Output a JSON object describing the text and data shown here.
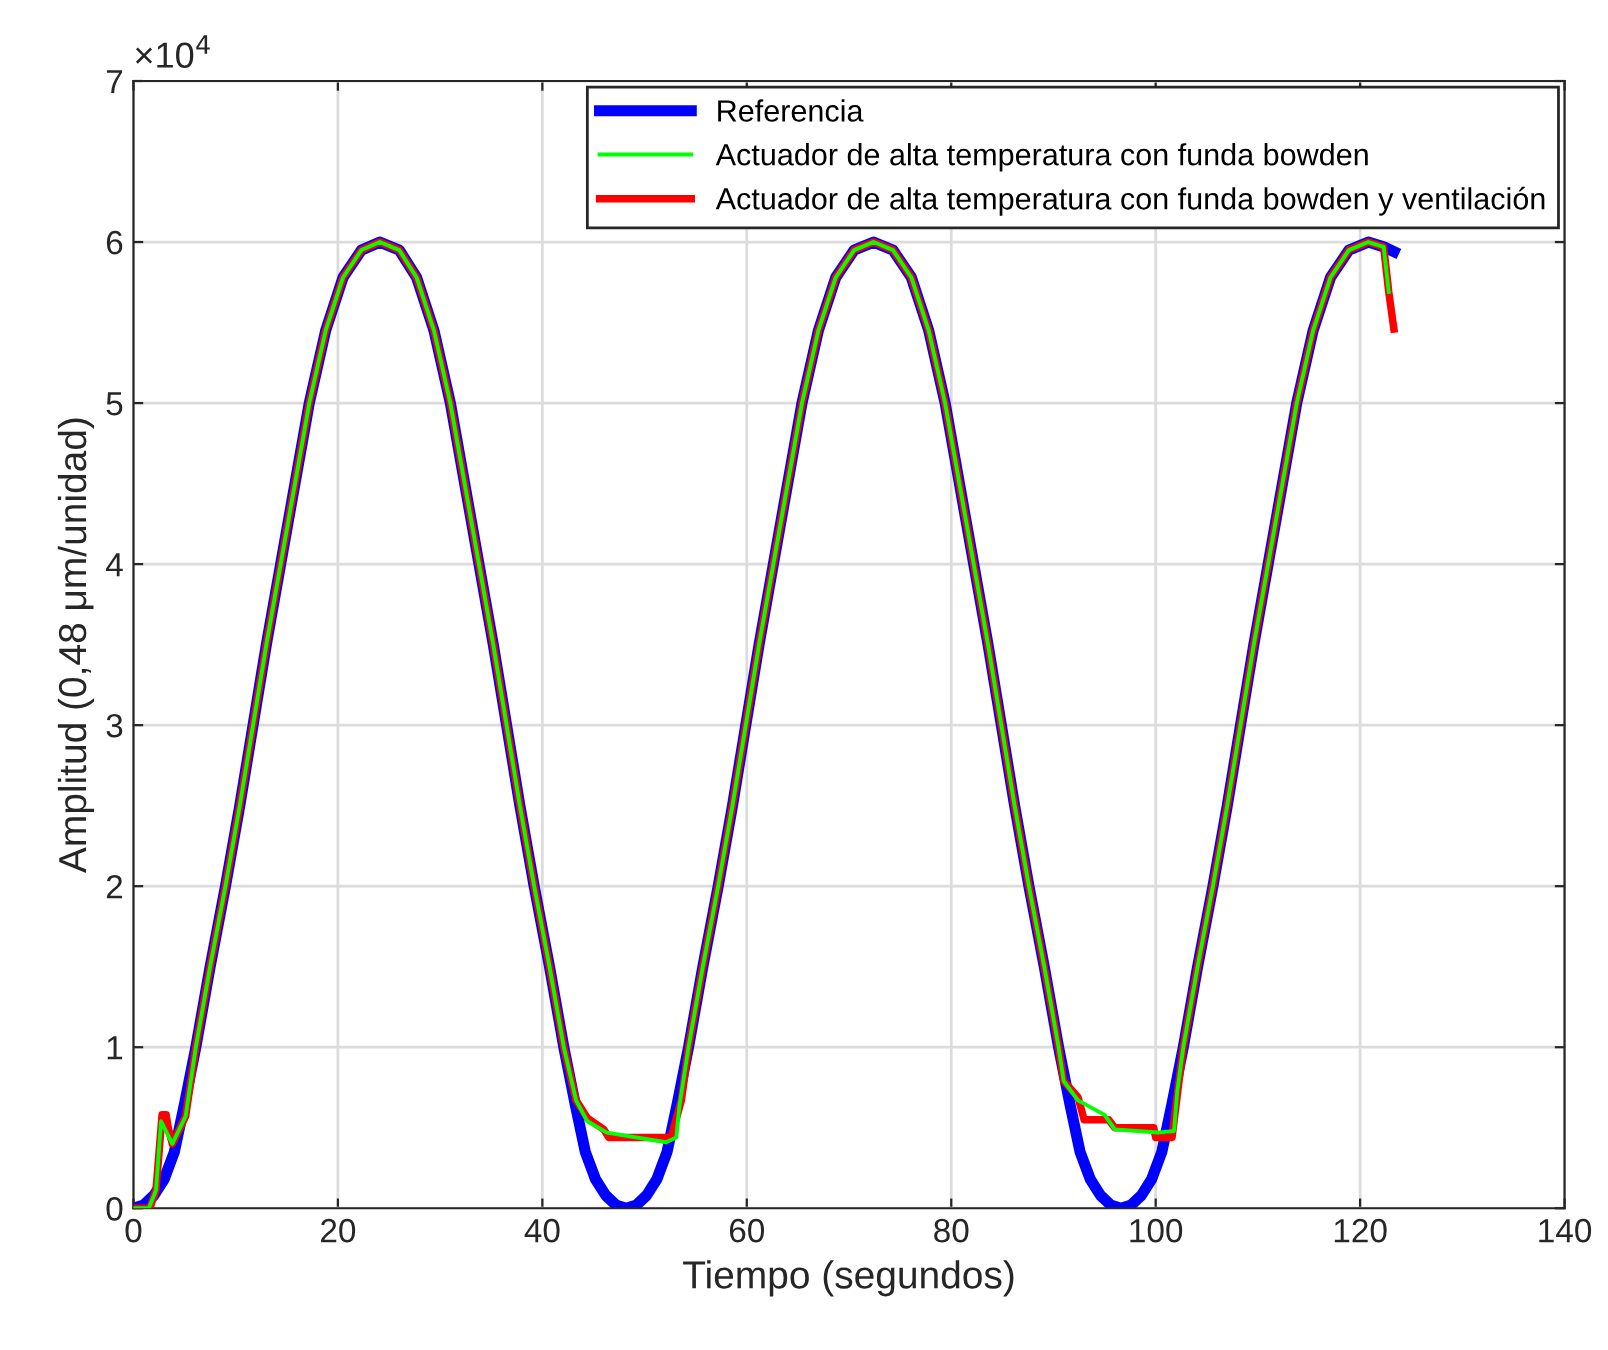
{
  "chart_data": {
    "type": "line",
    "xlabel": "Tiempo (segundos)",
    "ylabel": "Amplitud (0,48 μm/unidad)",
    "xlim": [
      0,
      140
    ],
    "xticks": [
      0,
      20,
      40,
      60,
      80,
      100,
      120,
      140
    ],
    "ylim": [
      0,
      7
    ],
    "yticks": [
      0,
      1,
      2,
      3,
      4,
      5,
      6,
      7
    ],
    "annotations": [
      "×10$^{4}$"
    ],
    "grid": true,
    "legend": "top right",
    "marker": "none",
    "line_style": "solid",
    "series": [
      {
        "name": "Referencia",
        "color": "#0000ff",
        "x": [
          0,
          1,
          2,
          3,
          4,
          5,
          6.1,
          7.5,
          9,
          10.4,
          11.7,
          13,
          14.4,
          15.8,
          17.2,
          18.8,
          20.5,
          22.3,
          24.1,
          26,
          27.7,
          29.4,
          31,
          32.4,
          33.8,
          35.2,
          36.5,
          37.8,
          39.2,
          40.7,
          42.1,
          43.2,
          44.2,
          45.2,
          46.2,
          47.2,
          48.2,
          49.2,
          50.2,
          51.2,
          52.2,
          53.2,
          54.3,
          55.7,
          57.2,
          58.6,
          59.9,
          61.2,
          62.6,
          64,
          65.4,
          67,
          68.7,
          70.5,
          72.4,
          74.3,
          76.1,
          77.8,
          79.4,
          80.8,
          82.2,
          83.6,
          84.9,
          86.2,
          87.6,
          89.1,
          90.5,
          91.6,
          92.6,
          93.6,
          94.6,
          95.6,
          96.6,
          97.6,
          98.6,
          99.6,
          100.6,
          101.6,
          102.7,
          104.1,
          105.6,
          107,
          108.3,
          109.6,
          111,
          112.4,
          113.8,
          115.4,
          117.1,
          118.9,
          120.8,
          122.3,
          123.3
        ],
        "values": [
          0,
          0.02,
          0.08,
          0.18,
          0.35,
          0.65,
          1,
          1.5,
          2,
          2.5,
          3,
          3.5,
          4,
          4.5,
          5,
          5.45,
          5.78,
          5.95,
          6,
          5.95,
          5.78,
          5.45,
          5,
          4.5,
          4,
          3.5,
          3,
          2.5,
          2,
          1.5,
          1,
          0.65,
          0.35,
          0.18,
          0.08,
          0.02,
          0,
          0.02,
          0.08,
          0.18,
          0.35,
          0.65,
          1,
          1.5,
          2,
          2.5,
          3,
          3.5,
          4,
          4.5,
          5,
          5.45,
          5.78,
          5.95,
          6,
          5.95,
          5.78,
          5.45,
          5,
          4.5,
          4,
          3.5,
          3,
          2.5,
          2,
          1.5,
          1,
          0.65,
          0.35,
          0.18,
          0.08,
          0.02,
          0,
          0.02,
          0.08,
          0.18,
          0.35,
          0.65,
          1,
          1.5,
          2,
          2.5,
          3,
          3.5,
          4,
          4.5,
          5,
          5.45,
          5.78,
          5.95,
          6,
          5.97,
          5.94
        ]
      },
      {
        "name": "Actuador de alta temperatura con funda bowden",
        "color": "#00ff00",
        "x": [
          0,
          1.5,
          2.2,
          2.7,
          3.8,
          5.1,
          6.1,
          7.5,
          9,
          10.4,
          11.7,
          13,
          14.4,
          15.8,
          17.2,
          18.8,
          20.5,
          22.3,
          24.1,
          26,
          27.7,
          29.4,
          31,
          32.4,
          33.8,
          35.2,
          36.5,
          37.8,
          39.2,
          40.7,
          42.1,
          43.3,
          44.4,
          46.3,
          52.1,
          53.1,
          53.4,
          54.3,
          55.7,
          57.2,
          58.6,
          59.9,
          61.2,
          62.6,
          64,
          65.4,
          67,
          68.7,
          70.5,
          72.4,
          74.3,
          76.1,
          77.8,
          79.4,
          80.8,
          82.2,
          83.6,
          84.9,
          86.2,
          87.6,
          89.1,
          90.5,
          91,
          92.4,
          95,
          96,
          100.2,
          101.8,
          102.1,
          102.7,
          104.1,
          105.6,
          107,
          108.3,
          109.6,
          111,
          112.4,
          113.8,
          115.4,
          117.1,
          118.9,
          120.8,
          122.3,
          122.8
        ],
        "values": [
          0,
          0,
          0.11,
          0.54,
          0.4,
          0.57,
          1,
          1.5,
          2,
          2.5,
          3,
          3.5,
          4,
          4.5,
          5,
          5.45,
          5.78,
          5.95,
          6,
          5.95,
          5.78,
          5.45,
          5,
          4.5,
          4,
          3.5,
          3,
          2.5,
          2,
          1.5,
          1,
          0.67,
          0.54,
          0.47,
          0.41,
          0.44,
          0.63,
          1,
          1.5,
          2,
          2.5,
          3,
          3.5,
          4,
          4.5,
          5,
          5.45,
          5.78,
          5.95,
          6,
          5.95,
          5.78,
          5.45,
          5,
          4.5,
          4,
          3.5,
          3,
          2.5,
          2,
          1.5,
          1,
          0.79,
          0.67,
          0.58,
          0.49,
          0.47,
          0.48,
          0.72,
          1,
          1.5,
          2,
          2.5,
          3,
          3.5,
          4,
          4.5,
          5,
          5.45,
          5.78,
          5.95,
          6,
          5.97,
          5.69
        ]
      },
      {
        "name": "Actuador de alta temperatura con funda bowden y ventilación",
        "color": "#ff0000",
        "x": [
          0,
          1.6,
          2.2,
          2.8,
          3.2,
          3.4,
          3.8,
          5.1,
          6.1,
          7.5,
          9,
          10.4,
          11.7,
          13,
          14.4,
          15.8,
          17.2,
          18.8,
          20.5,
          22.3,
          24.1,
          26,
          27.7,
          29.4,
          31,
          32.4,
          33.8,
          35.2,
          36.5,
          37.8,
          39.2,
          40.7,
          42.1,
          43.3,
          44.4,
          46,
          46.5,
          52.6,
          53.6,
          54.3,
          55.7,
          57.2,
          58.6,
          59.9,
          61.2,
          62.6,
          64,
          65.4,
          67,
          68.7,
          70.5,
          72.4,
          74.3,
          76.1,
          77.8,
          79.4,
          80.8,
          82.2,
          83.6,
          84.9,
          86.2,
          87.6,
          89.1,
          90.5,
          91,
          92.4,
          93,
          95.4,
          96,
          99.8,
          100,
          101.6,
          102.3,
          102.7,
          104.1,
          105.6,
          107,
          108.3,
          109.6,
          111,
          112.4,
          113.8,
          115.4,
          117.1,
          118.9,
          120.8,
          122.3,
          122.8,
          123.3
        ],
        "values": [
          0,
          0,
          0.11,
          0.58,
          0.58,
          0.5,
          0.4,
          0.57,
          1,
          1.5,
          2,
          2.5,
          3,
          3.5,
          4,
          4.5,
          5,
          5.45,
          5.78,
          5.95,
          6,
          5.95,
          5.78,
          5.45,
          5,
          4.5,
          4,
          3.5,
          3,
          2.5,
          2,
          1.5,
          1,
          0.67,
          0.56,
          0.49,
          0.44,
          0.44,
          0.67,
          1,
          1.5,
          2,
          2.5,
          3,
          3.5,
          4,
          4.5,
          5,
          5.45,
          5.78,
          5.95,
          6,
          5.95,
          5.78,
          5.45,
          5,
          4.5,
          4,
          3.5,
          3,
          2.5,
          2,
          1.5,
          1,
          0.79,
          0.69,
          0.55,
          0.55,
          0.5,
          0.5,
          0.44,
          0.44,
          0.8,
          1,
          1.5,
          2,
          2.5,
          3,
          3.5,
          4,
          4.5,
          5,
          5.45,
          5.78,
          5.95,
          6,
          5.97,
          5.69,
          5.46
        ]
      }
    ]
  }
}
